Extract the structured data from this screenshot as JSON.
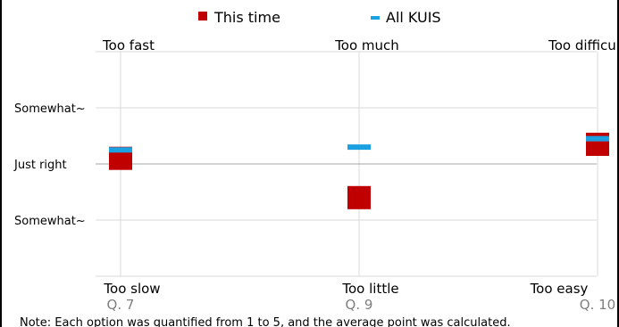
{
  "chart_data": {
    "type": "scatter",
    "legend": {
      "placement": "top",
      "items": [
        {
          "name": "This time",
          "color": "#c00000",
          "marker": "square"
        },
        {
          "name": "All KUIS",
          "color": "#1ba1e2",
          "marker": "dash"
        }
      ]
    },
    "categories": [
      "Q. 7",
      "Q. 9",
      "Q. 10"
    ],
    "top_labels": [
      "Too fast",
      "Too much",
      "Too difficult"
    ],
    "bottom_labels": [
      "Too slow",
      "Too little",
      "Too easy"
    ],
    "y_tick_labels": [
      {
        "value": 4,
        "text": "Somewhat~"
      },
      {
        "value": 3,
        "text": "Just right"
      },
      {
        "value": 2,
        "text": "Somewhat~"
      }
    ],
    "ylim": [
      1,
      5
    ],
    "grid": true,
    "series": [
      {
        "name": "This time",
        "values": [
          3.1,
          2.4,
          3.35
        ]
      },
      {
        "name": "All KUIS",
        "values": [
          3.25,
          3.3,
          3.45
        ]
      }
    ],
    "note": "Note:  Each option was quantified from 1 to 5, and the average point was calculated."
  }
}
